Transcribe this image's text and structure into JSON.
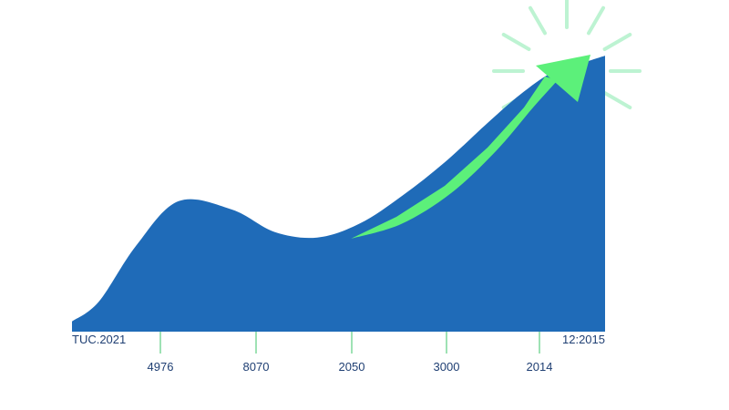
{
  "chart_data": {
    "type": "area",
    "title": "",
    "xlabel": "",
    "ylabel": "",
    "start_label": "TUC.2021",
    "end_label": "12:2015",
    "tick_labels": [
      "4976",
      "8070",
      "2050",
      "3000",
      "2014"
    ],
    "x_range": [
      0,
      1
    ],
    "ylim": [
      0,
      1
    ],
    "series": [
      {
        "x": [
          0.0,
          0.05,
          0.12,
          0.2,
          0.3,
          0.38,
          0.46,
          0.54,
          0.62,
          0.7,
          0.78,
          0.84,
          0.9,
          0.95,
          1.0
        ],
        "values": [
          0.03,
          0.1,
          0.3,
          0.46,
          0.43,
          0.35,
          0.33,
          0.38,
          0.48,
          0.6,
          0.74,
          0.84,
          0.92,
          0.95,
          0.98
        ]
      }
    ],
    "trend_arrow": true,
    "grid": false,
    "legend": "none",
    "colors": {
      "area": "#1f6bb8",
      "arrow": "#5cf07a",
      "glow": "#bdf3d2",
      "axis": "#1f6bb8",
      "ticks": "#7ed99a"
    }
  }
}
